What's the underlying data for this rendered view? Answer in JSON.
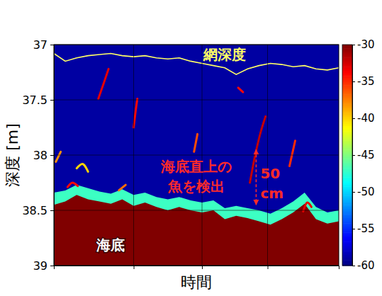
{
  "chart_data": {
    "type": "echogram",
    "xlabel": "時間",
    "ylabel": "深度 [m]",
    "xlim": [
      0,
      100
    ],
    "xticks": [
      28,
      52,
      75
    ],
    "ylim": [
      39,
      37
    ],
    "yticks": [
      37,
      37.5,
      38,
      38.5,
      39
    ],
    "grid": true,
    "tick_labels": "y",
    "colorbar": {
      "range": [
        -60,
        -30
      ],
      "ticks": [
        -30,
        -35,
        -40,
        -45,
        -50,
        -55,
        -60
      ]
    },
    "background": -59,
    "x": [
      0,
      4,
      8,
      12,
      16,
      20,
      24,
      28,
      32,
      36,
      40,
      44,
      48,
      52,
      56,
      60,
      64,
      68,
      72,
      76,
      80,
      84,
      88,
      92,
      96,
      100
    ],
    "series": [
      {
        "name": "網深度",
        "type": "line",
        "color": "#ffff66",
        "values": [
          37.08,
          37.15,
          37.12,
          37.1,
          37.09,
          37.08,
          37.1,
          37.11,
          37.1,
          37.12,
          37.13,
          37.12,
          37.15,
          37.17,
          37.19,
          37.21,
          37.27,
          37.22,
          37.19,
          37.17,
          37.18,
          37.2,
          37.19,
          37.22,
          37.23,
          37.21
        ]
      },
      {
        "type": "area",
        "level": -47,
        "values": [
          38.34,
          38.32,
          38.27,
          38.3,
          38.33,
          38.35,
          38.31,
          38.36,
          38.34,
          38.38,
          38.4,
          38.38,
          38.41,
          38.43,
          38.41,
          38.48,
          38.46,
          38.48,
          38.5,
          38.53,
          38.48,
          38.42,
          38.34,
          38.47,
          38.52,
          38.5
        ]
      },
      {
        "name": "海底",
        "type": "area",
        "level": -30,
        "values": [
          38.45,
          38.42,
          38.36,
          38.4,
          38.42,
          38.44,
          38.4,
          38.46,
          38.43,
          38.47,
          38.5,
          38.47,
          38.5,
          38.52,
          38.5,
          38.58,
          38.55,
          38.57,
          38.6,
          38.63,
          38.58,
          38.52,
          38.44,
          38.58,
          38.62,
          38.6
        ]
      }
    ],
    "echoes": [
      {
        "x": [
          15.6,
          17.5,
          19.2
        ],
        "y": [
          37.49,
          37.35,
          37.22
        ],
        "level": -33
      },
      {
        "x": [
          28,
          28.7,
          29.3
        ],
        "y": [
          37.75,
          37.6,
          37.49
        ],
        "level": -34
      },
      {
        "x": [
          49.2,
          50.4
        ],
        "y": [
          37.97,
          37.81
        ],
        "level": -36
      },
      {
        "x": [
          68.8,
          70.5,
          72.5,
          74.3
        ],
        "y": [
          38.25,
          38.02,
          37.8,
          37.65
        ],
        "level": -32
      },
      {
        "x": [
          82.7,
          84.7
        ],
        "y": [
          38.1,
          37.87
        ],
        "level": -35
      },
      {
        "x": [
          0.7,
          2.4
        ],
        "y": [
          38.06,
          37.97
        ],
        "level": -38
      },
      {
        "x": [
          8,
          10,
          12
        ],
        "y": [
          38.12,
          38.08,
          38.15
        ],
        "level": -40
      },
      {
        "x": [
          22.8,
          25.2
        ],
        "y": [
          38.32,
          38.27
        ],
        "level": -37
      },
      {
        "x": [
          4.8,
          6.5,
          8.4
        ],
        "y": [
          38.29,
          38.25,
          38.28
        ],
        "level": -34
      },
      {
        "x": [
          87.5,
          89,
          90.4
        ],
        "y": [
          38.51,
          38.43,
          38.47
        ],
        "level": -33
      },
      {
        "x": [
          64.7,
          66.4
        ],
        "y": [
          37.39,
          37.43
        ],
        "level": -34
      }
    ],
    "annotations": [
      {
        "text": [
          "海底直上の",
          "魚を検出"
        ],
        "color": "#ff2a2a"
      }
    ],
    "measure": {
      "x": 71,
      "from": 37.95,
      "to": 38.45,
      "text": [
        "50",
        "cm"
      ],
      "color": "#ff2a2a"
    }
  }
}
